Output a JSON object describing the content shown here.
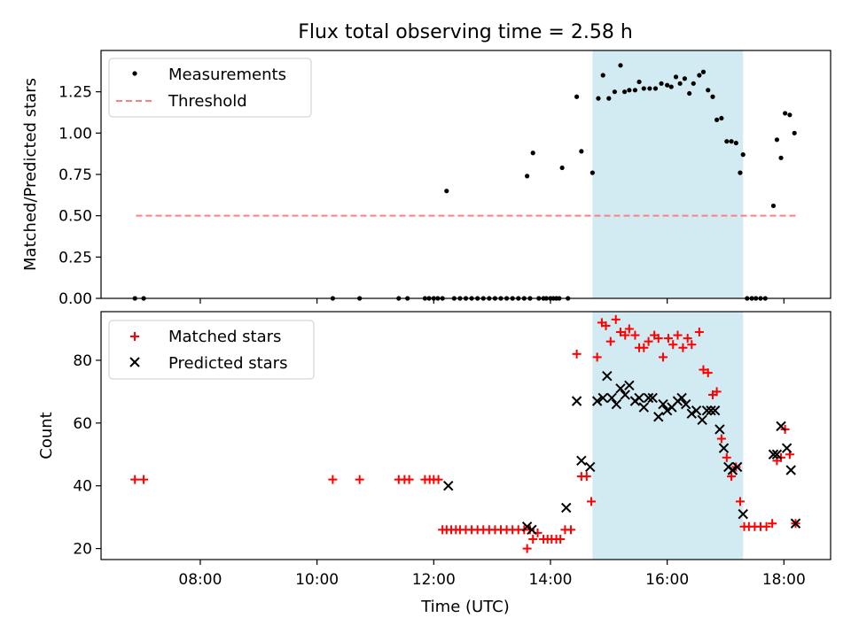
{
  "title": "Flux total observing time = 2.58 h",
  "colors": {
    "measurement": "#000000",
    "threshold": "#ff7f7f",
    "matched": "#ff0000",
    "predicted": "#000000",
    "shade": "#add8e6"
  },
  "chart_data": [
    {
      "type": "scatter",
      "ylabel": "Matched/Predicted stars",
      "ylim": [
        0,
        1.5
      ],
      "yticks": [
        0,
        0.25,
        0.5,
        0.75,
        1.0,
        1.25
      ],
      "yticklabels": [
        "0.00",
        "0.25",
        "0.50",
        "0.75",
        "1.00",
        "1.25"
      ],
      "xlim": [
        6.3,
        18.8
      ],
      "xticks": [
        8,
        10,
        12,
        14,
        16,
        18
      ],
      "shaded_span": [
        14.72,
        17.3
      ],
      "legend": {
        "position": "top-left",
        "entries": [
          "Measurements",
          "Threshold"
        ]
      },
      "threshold": {
        "name": "Threshold",
        "value": 0.5,
        "x": [
          6.9,
          18.2
        ]
      },
      "series": [
        {
          "name": "Measurements",
          "marker": "dot",
          "x": [
            6.88,
            7.03,
            10.27,
            10.73,
            11.4,
            11.55,
            11.85,
            11.92,
            12.0,
            12.07,
            12.15,
            12.22,
            12.35,
            12.45,
            12.55,
            12.65,
            12.75,
            12.85,
            12.95,
            13.05,
            13.15,
            13.25,
            13.35,
            13.45,
            13.55,
            13.6,
            13.65,
            13.7,
            13.8,
            13.88,
            13.93,
            14.0,
            14.05,
            14.1,
            14.15,
            14.2,
            14.3,
            14.45,
            14.53,
            14.72,
            14.82,
            14.9,
            15.0,
            15.1,
            15.2,
            15.27,
            15.35,
            15.45,
            15.52,
            15.6,
            15.7,
            15.8,
            15.9,
            16.0,
            16.07,
            16.15,
            16.22,
            16.3,
            16.38,
            16.45,
            16.55,
            16.62,
            16.7,
            16.78,
            16.85,
            16.93,
            17.02,
            17.1,
            17.18,
            17.25,
            17.3,
            17.37,
            17.45,
            17.52,
            17.6,
            17.68,
            17.82,
            17.88,
            17.95,
            18.02,
            18.1,
            18.18
          ],
          "y": [
            0,
            0,
            0,
            0,
            0,
            0,
            0,
            0,
            0,
            0,
            0,
            0.65,
            0,
            0,
            0,
            0,
            0,
            0,
            0,
            0,
            0,
            0,
            0,
            0,
            0,
            0.74,
            0,
            0.88,
            0,
            0,
            0,
            0,
            0,
            0,
            0,
            0.79,
            0,
            1.22,
            0.89,
            0.76,
            1.21,
            1.35,
            1.21,
            1.25,
            1.41,
            1.25,
            1.26,
            1.26,
            1.31,
            1.27,
            1.27,
            1.27,
            1.3,
            1.29,
            1.28,
            1.34,
            1.3,
            1.33,
            1.24,
            1.3,
            1.35,
            1.37,
            1.26,
            1.22,
            1.08,
            1.09,
            0.95,
            0.95,
            0.94,
            0.76,
            0.87,
            0,
            0,
            0,
            0,
            0,
            0.56,
            0.96,
            0.85,
            1.12,
            1.11,
            1.0
          ]
        }
      ]
    },
    {
      "type": "scatter",
      "xlabel": "Time (UTC)",
      "ylabel": "Count",
      "ylim": [
        16.5,
        95.5
      ],
      "yticks": [
        20,
        40,
        60,
        80
      ],
      "yticklabels": [
        "20",
        "40",
        "60",
        "80"
      ],
      "xlim": [
        6.3,
        18.8
      ],
      "xticks": [
        8,
        10,
        12,
        14,
        16,
        18
      ],
      "xticklabels": [
        "08:00",
        "10:00",
        "12:00",
        "14:00",
        "16:00",
        "18:00"
      ],
      "shaded_span": [
        14.72,
        17.3
      ],
      "legend": {
        "position": "top-left",
        "entries": [
          "Matched stars",
          "Predicted stars"
        ]
      },
      "series": [
        {
          "name": "Matched stars",
          "marker": "plus",
          "x": [
            6.88,
            7.03,
            10.27,
            10.73,
            11.4,
            11.5,
            11.58,
            11.85,
            11.93,
            12.0,
            12.08,
            12.15,
            12.22,
            12.3,
            12.38,
            12.45,
            12.55,
            12.65,
            12.75,
            12.85,
            12.95,
            13.05,
            13.15,
            13.25,
            13.35,
            13.45,
            13.55,
            13.6,
            13.65,
            13.7,
            13.78,
            13.88,
            13.95,
            14.02,
            14.1,
            14.17,
            14.25,
            14.35,
            14.45,
            14.53,
            14.62,
            14.7,
            14.8,
            14.88,
            14.95,
            15.03,
            15.12,
            15.2,
            15.28,
            15.35,
            15.45,
            15.52,
            15.6,
            15.68,
            15.78,
            15.85,
            15.93,
            16.02,
            16.1,
            16.18,
            16.27,
            16.35,
            16.42,
            16.55,
            16.62,
            16.7,
            16.78,
            16.85,
            16.93,
            17.02,
            17.1,
            17.18,
            17.25,
            17.32,
            17.4,
            17.5,
            17.6,
            17.7,
            17.8,
            17.88,
            17.95,
            18.02,
            18.1,
            18.2
          ],
          "y": [
            42,
            42,
            42,
            42,
            42,
            42,
            42,
            42,
            42,
            42,
            42,
            26,
            26,
            26,
            26,
            26,
            26,
            26,
            26,
            26,
            26,
            26,
            26,
            26,
            26,
            26,
            26,
            20,
            26,
            23,
            25,
            23,
            23,
            23,
            23,
            23,
            26,
            26,
            82,
            43,
            43,
            35,
            81,
            92,
            91,
            86,
            93,
            89,
            88,
            90,
            88,
            84,
            84,
            86,
            88,
            87,
            81,
            87,
            85,
            88,
            84,
            87,
            85,
            89,
            77,
            76,
            69,
            70,
            55,
            49,
            43,
            46,
            35,
            27,
            27,
            27,
            27,
            27,
            28,
            48,
            49,
            58,
            50,
            28
          ]
        },
        {
          "name": "Predicted stars",
          "marker": "x",
          "x": [
            12.25,
            13.6,
            13.68,
            14.27,
            14.45,
            14.53,
            14.68,
            14.8,
            14.9,
            14.97,
            15.05,
            15.13,
            15.2,
            15.28,
            15.35,
            15.45,
            15.52,
            15.6,
            15.68,
            15.75,
            15.85,
            15.93,
            16.0,
            16.08,
            16.18,
            16.25,
            16.32,
            16.42,
            16.5,
            16.6,
            16.68,
            16.75,
            16.82,
            16.9,
            16.97,
            17.05,
            17.12,
            17.2,
            17.3,
            17.82,
            17.88,
            17.95,
            18.05,
            18.12,
            18.2
          ],
          "y": [
            40,
            27,
            26,
            33,
            67,
            48,
            46,
            67,
            68,
            75,
            68,
            66,
            71,
            69,
            72,
            67,
            68,
            65,
            68,
            68,
            62,
            66,
            64,
            65,
            67,
            68,
            66,
            63,
            64,
            61,
            64,
            64,
            64,
            58,
            52,
            46,
            45,
            46,
            31,
            50,
            50,
            59,
            52,
            45,
            28
          ]
        }
      ]
    }
  ]
}
